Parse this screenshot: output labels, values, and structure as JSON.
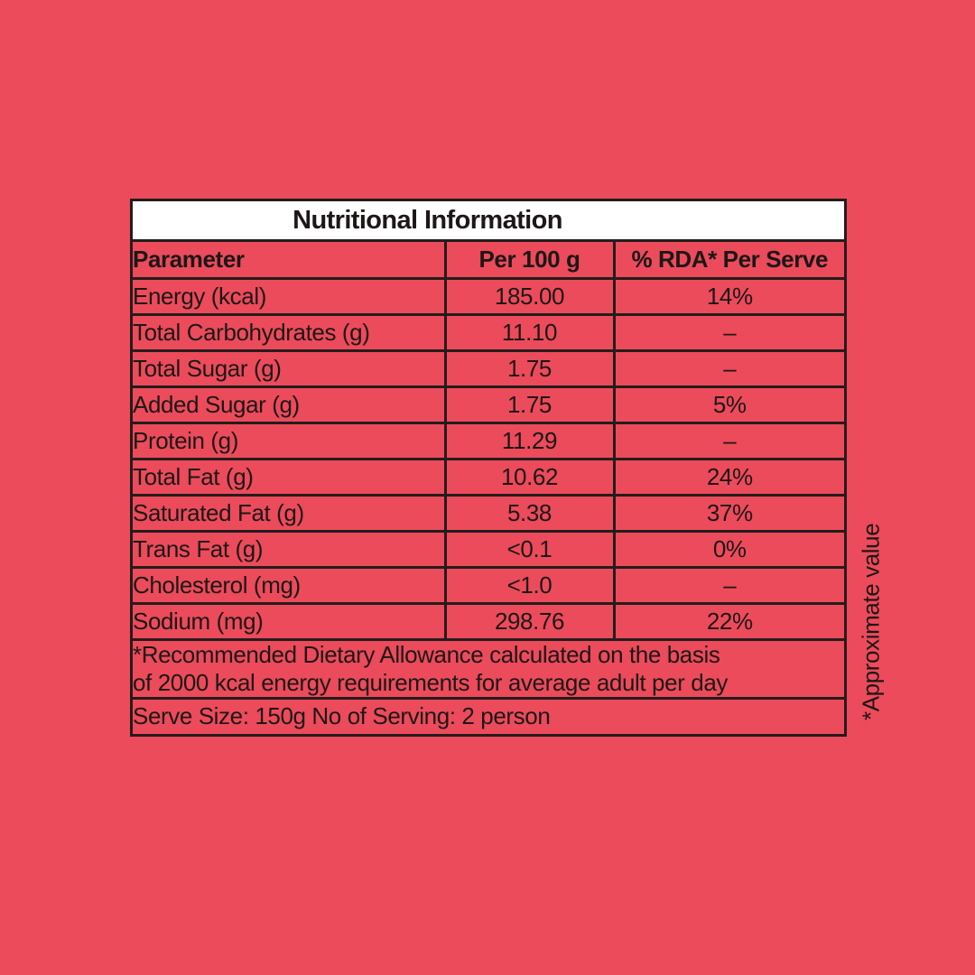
{
  "page": {
    "background_color": "#EB4B5B",
    "border_color": "#241C1C",
    "title_band_color": "#FFFFFF",
    "text_color": "#1D1717"
  },
  "table": {
    "title": "Nutritional Information",
    "columns": {
      "parameter": "Parameter",
      "per_100g": "Per 100 g",
      "rda_per_serve": "% RDA* Per Serve"
    },
    "rows": [
      {
        "parameter": "Energy (kcal)",
        "per_100g": "185.00",
        "rda_per_serve": "14%"
      },
      {
        "parameter": "Total Carbohydrates (g)",
        "per_100g": "11.10",
        "rda_per_serve": "–"
      },
      {
        "parameter": "Total Sugar (g)",
        "per_100g": "1.75",
        "rda_per_serve": "–"
      },
      {
        "parameter": "Added Sugar (g)",
        "per_100g": "1.75",
        "rda_per_serve": "5%"
      },
      {
        "parameter": "Protein (g)",
        "per_100g": "11.29",
        "rda_per_serve": "–"
      },
      {
        "parameter": "Total Fat (g)",
        "per_100g": "10.62",
        "rda_per_serve": "24%"
      },
      {
        "parameter": "Saturated Fat (g)",
        "per_100g": "5.38",
        "rda_per_serve": "37%"
      },
      {
        "parameter": "Trans Fat (g)",
        "per_100g": "<0.1",
        "rda_per_serve": "0%"
      },
      {
        "parameter": "Cholesterol (mg)",
        "per_100g": "<1.0",
        "rda_per_serve": "–"
      },
      {
        "parameter": "Sodium (mg)",
        "per_100g": "298.76",
        "rda_per_serve": "22%"
      }
    ],
    "rda_note": "*Recommended Dietary Allowance calculated on the basis\nof 2000 kcal energy requirements for average  adult per day",
    "serve_note": "Serve Size: 150g No of Serving: 2 person"
  },
  "side_note": "*Approximate value"
}
